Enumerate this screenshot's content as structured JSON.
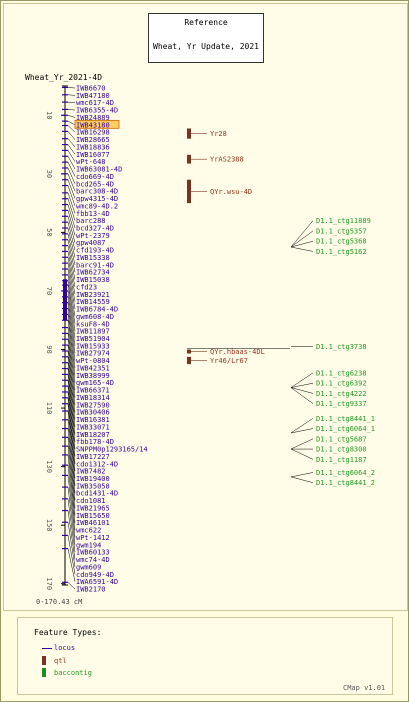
{
  "reference": {
    "title": "Reference",
    "subtitle": "Wheat, Yr Update, 2021"
  },
  "map_name": "Wheat_Yr_2021-4D",
  "range_label": "0-170.43 cM",
  "axis": {
    "min": 0,
    "max": 170.43,
    "ticks": [
      10,
      30,
      50,
      70,
      90,
      110,
      130,
      150,
      170
    ]
  },
  "loci": [
    {
      "name": "IWB6670",
      "pos": 0.5
    },
    {
      "name": "IWB47180",
      "pos": 3.0
    },
    {
      "name": "wmc617-4D",
      "pos": 5.5
    },
    {
      "name": "IWB6355-4D",
      "pos": 8.0
    },
    {
      "name": "IWB24889",
      "pos": 10.0
    },
    {
      "name": "IWB43180",
      "pos": 12.0,
      "highlight": true
    },
    {
      "name": "IWB16298",
      "pos": 13.5
    },
    {
      "name": "IWB28665",
      "pos": 15.5
    },
    {
      "name": "IWB18836",
      "pos": 18.0
    },
    {
      "name": "IWB16077",
      "pos": 20.0
    },
    {
      "name": "wPt-648",
      "pos": 22.0
    },
    {
      "name": "IWB63081-4D",
      "pos": 24.0
    },
    {
      "name": "cdo669-4D",
      "pos": 26.0
    },
    {
      "name": "bcd265-4D",
      "pos": 28.0
    },
    {
      "name": "barc308-4D",
      "pos": 30.0
    },
    {
      "name": "gpw4315-4D",
      "pos": 32.0
    },
    {
      "name": "wmc89-4D.2",
      "pos": 34.0
    },
    {
      "name": "fbb13-4D",
      "pos": 36.5
    },
    {
      "name": "barc288",
      "pos": 38.5
    },
    {
      "name": "bcd327-4D",
      "pos": 40.5
    },
    {
      "name": "wPt-2379",
      "pos": 42.5
    },
    {
      "name": "gpw4087",
      "pos": 44.5
    },
    {
      "name": "cfd193-4D",
      "pos": 46.5
    },
    {
      "name": "IWB15338",
      "pos": 48.5
    },
    {
      "name": "barc91-4D",
      "pos": 50.5
    },
    {
      "name": "IWB62734",
      "pos": 52.5
    },
    {
      "name": "IWB15038",
      "pos": 54.5
    },
    {
      "name": "cfd23",
      "pos": 56.5
    },
    {
      "name": "IWB23921",
      "pos": 58.5
    },
    {
      "name": "IWB14559",
      "pos": 60.5
    },
    {
      "name": "IWB6784-4D",
      "pos": 62.5
    },
    {
      "name": "gwm608-4D",
      "pos": 64.5
    },
    {
      "name": "ksuF8-4D",
      "pos": 66.5
    },
    {
      "name": "IWB11897",
      "pos": 68.0
    },
    {
      "name": "IWB51904",
      "pos": 70.0
    },
    {
      "name": "IWB15933",
      "pos": 72.0
    },
    {
      "name": "IWB27974",
      "pos": 74.0
    },
    {
      "name": "wPt-0804",
      "pos": 76.0
    },
    {
      "name": "IWB42351",
      "pos": 78.0
    },
    {
      "name": "IWB38999",
      "pos": 80.0
    },
    {
      "name": "gwm165-4D",
      "pos": 82.5
    },
    {
      "name": "IWB66371",
      "pos": 84.5
    },
    {
      "name": "IWB18314",
      "pos": 86.5
    },
    {
      "name": "IWB27590",
      "pos": 88.5
    },
    {
      "name": "IWB30406",
      "pos": 90.5
    },
    {
      "name": "IWB16381",
      "pos": 92.5
    },
    {
      "name": "IWB33071",
      "pos": 94.5
    },
    {
      "name": "IWB18207",
      "pos": 96.5
    },
    {
      "name": "fbb178-4D",
      "pos": 98.5
    },
    {
      "name": "SNPPM0p1293165/14",
      "pos": 100.5
    },
    {
      "name": "IWB17227",
      "pos": 102.5
    },
    {
      "name": "cdo1312-4D",
      "pos": 104.5
    },
    {
      "name": "IWB7482",
      "pos": 106.5
    },
    {
      "name": "IWB19400",
      "pos": 108.5
    },
    {
      "name": "IWB35058",
      "pos": 111.0
    },
    {
      "name": "bcd1431-4D",
      "pos": 114.0
    },
    {
      "name": "cdo1081",
      "pos": 117.0
    },
    {
      "name": "IWB21965",
      "pos": 120.0
    },
    {
      "name": "IWB15650",
      "pos": 123.0
    },
    {
      "name": "IWB46101",
      "pos": 126.0
    },
    {
      "name": "wmc622",
      "pos": 129.5
    },
    {
      "name": "wPt-1412",
      "pos": 133.0
    },
    {
      "name": "gwm194",
      "pos": 137.0
    },
    {
      "name": "IWB60133",
      "pos": 141.0
    },
    {
      "name": "wmc74-4D",
      "pos": 145.0
    },
    {
      "name": "gwm609",
      "pos": 149.0
    },
    {
      "name": "cdo949-4D",
      "pos": 153.5
    },
    {
      "name": "IWA6591-4D",
      "pos": 158.0
    },
    {
      "name": "IWB2170",
      "pos": 169.5
    }
  ],
  "qtls": [
    {
      "name": "Yr28",
      "start": 14.5,
      "end": 18.0
    },
    {
      "name": "YrAS2388",
      "start": 23.5,
      "end": 26.5
    },
    {
      "name": "QYr.wsu-4D",
      "start": 32.0,
      "end": 40.0
    },
    {
      "name": "QYr.hbaas-4DL",
      "start": 90.0,
      "end": 90.6
    },
    {
      "name": "Yr46/Lr67",
      "start": 92.5,
      "end": 95.0
    }
  ],
  "contigs": [
    {
      "name": "D1.1_ctg11889",
      "pos": 46.0
    },
    {
      "name": "D1.1_ctg5357",
      "pos": 49.5
    },
    {
      "name": "D1.1_ctg5368",
      "pos": 53.0
    },
    {
      "name": "D1.1_ctg5162",
      "pos": 56.5
    },
    {
      "name": "D1.1_ctg3738",
      "pos": 89.0
    },
    {
      "name": "D1.1_ctg6238",
      "pos": 98.0
    },
    {
      "name": "D1.1_ctg6392",
      "pos": 101.5
    },
    {
      "name": "D1.1_ctg4222",
      "pos": 105.0
    },
    {
      "name": "D1.1_ctg9337",
      "pos": 108.5
    },
    {
      "name": "D1.1_ctg8441_1",
      "pos": 113.5
    },
    {
      "name": "D1.1_ctg6064_1",
      "pos": 117.0
    },
    {
      "name": "D1.1_ctg5687",
      "pos": 120.5
    },
    {
      "name": "D1.1_ctg8300",
      "pos": 124.0
    },
    {
      "name": "D1.1_ctg1187",
      "pos": 127.5
    },
    {
      "name": "D1.1_ctg6064_2",
      "pos": 132.0
    },
    {
      "name": "D1.1_ctg8441_2",
      "pos": 135.5
    }
  ],
  "contig_groups": [
    {
      "anchor": 55.0,
      "members": [
        0,
        1,
        2,
        3
      ]
    },
    {
      "anchor": 89.0,
      "members": [
        4
      ]
    },
    {
      "anchor": 103.0,
      "members": [
        5,
        6,
        7,
        8
      ]
    },
    {
      "anchor": 118.5,
      "members": [
        9,
        10
      ]
    },
    {
      "anchor": 124.0,
      "members": [
        11,
        12,
        13
      ]
    },
    {
      "anchor": 133.5,
      "members": [
        14,
        15
      ]
    }
  ],
  "colors": {
    "locus": "#330099",
    "locus_text": "#330099",
    "qtl": "#7a3322",
    "qtl_text": "#993322",
    "contig": "#228b22",
    "contig_text": "#229922",
    "highlight": "#ffcc66",
    "axis": "#000000"
  },
  "legend": {
    "title": "Feature Types:",
    "items": [
      {
        "label": "locus",
        "icon": "line-swatch-icon"
      },
      {
        "label": "qtl",
        "icon": "qtl-bar-icon"
      },
      {
        "label": "baccontig",
        "icon": "contig-bar-icon"
      }
    ]
  },
  "footer": {
    "version": "CMap v1.01"
  }
}
